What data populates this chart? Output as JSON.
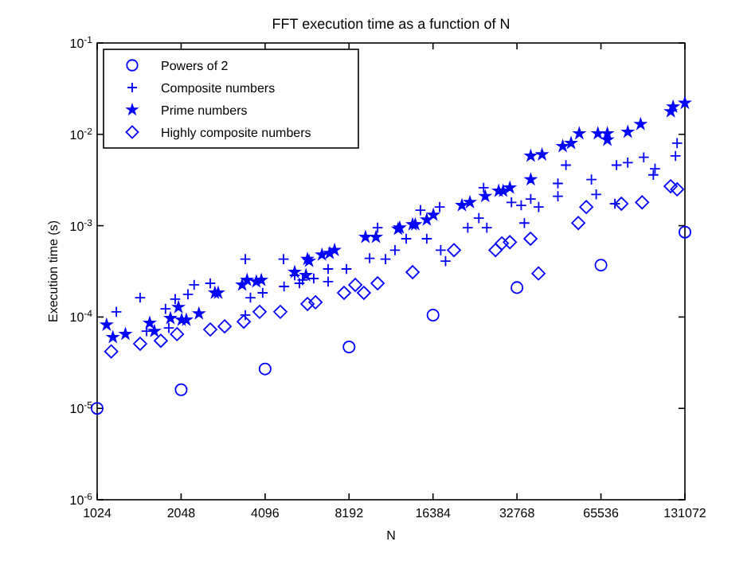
{
  "chart_data": {
    "type": "scatter",
    "title": "FFT execution time as a function of N",
    "xlabel": "N",
    "ylabel": "Execution time (s)",
    "log": "xy",
    "xlim": [
      1024,
      131072
    ],
    "ylim": [
      1e-06,
      0.1
    ],
    "xticks": [
      1024,
      2048,
      4096,
      8192,
      16384,
      32768,
      65536,
      131072
    ],
    "yticks": [
      {
        "value": 1e-06,
        "label": "10$^{-6}$"
      },
      {
        "value": 1e-05,
        "label": "10$^{-5}$"
      },
      {
        "value": 0.0001,
        "label": "10$^{-4}$"
      },
      {
        "value": 0.001,
        "label": "10$^{-3}$"
      },
      {
        "value": 0.01,
        "label": "10$^{-2}$"
      },
      {
        "value": 0.1,
        "label": "10$^{-1}$"
      }
    ],
    "grid": false,
    "legend": "top left",
    "series": [
      {
        "name": "Powers of 2",
        "color": "#0000ff",
        "marker": "circle",
        "x": [
          1024,
          2048,
          4096,
          8192,
          16384,
          32768,
          65536,
          131072
        ],
        "values": [
          1e-05,
          1.6e-05,
          2.7e-05,
          4.7e-05,
          0.000105,
          0.00021,
          0.00037,
          0.00085
        ]
      },
      {
        "name": "Composite numbers",
        "color": "#0000ff",
        "marker": "cross",
        "x": [
          1200,
          1460,
          1540,
          1800,
          1850,
          1950,
          2167,
          2280,
          2605,
          3480,
          3480,
          3630,
          4015,
          4770,
          4790,
          5440,
          5230,
          5580,
          6120,
          6890,
          6890,
          8020,
          9710,
          11070,
          10371,
          11970,
          13130,
          15560,
          14770,
          17310,
          17460,
          18170,
          21830,
          23920,
          25550,
          24880,
          31310,
          33930,
          34830,
          36710,
          39200,
          45930,
          45930,
          49080,
          60580,
          63020,
          74530,
          73540,
          81770,
          93300,
          101000,
          102400,
          121300,
          122900
        ],
        "values": [
          0.000114,
          0.000163,
          7e-05,
          0.000123,
          7.6e-05,
          0.000157,
          0.000177,
          0.000225,
          0.000234,
          0.00043,
          0.000105,
          0.000163,
          0.000184,
          0.00043,
          0.000216,
          0.000234,
          0.000286,
          0.000254,
          0.000264,
          0.000336,
          0.000244,
          0.000336,
          0.00044,
          0.00043,
          0.00095,
          0.00054,
          0.00072,
          0.00072,
          0.00148,
          0.0016,
          0.00054,
          0.00041,
          0.00095,
          0.00121,
          0.00095,
          0.0026,
          0.0018,
          0.00167,
          0.00107,
          0.00196,
          0.0016,
          0.0029,
          0.0021,
          0.0046,
          0.0032,
          0.0022,
          0.0046,
          0.00174,
          0.0049,
          0.0056,
          0.0036,
          0.0042,
          0.0058,
          0.008
        ]
      },
      {
        "name": "Prime numbers",
        "color": "#0000ff",
        "marker": "star",
        "x": [
          1107,
          1166,
          1293,
          1580,
          1642,
          1875,
          2003,
          2057,
          2138,
          2372,
          2707,
          2780,
          3390,
          3530,
          3810,
          3970,
          5230,
          5740,
          5810,
          5890,
          6550,
          6980,
          7270,
          9380,
          10230,
          12280,
          12450,
          13840,
          14150,
          15560,
          16430,
          20800,
          22220,
          25210,
          28170,
          29230,
          30900,
          36710,
          36710,
          40300,
          47800,
          51200,
          54800,
          63900,
          69100,
          69100,
          81770,
          90900,
          116600,
          118900,
          131000
        ],
        "values": [
          8.2e-05,
          6e-05,
          6.5e-05,
          8.6e-05,
          7e-05,
          9.7e-05,
          0.000128,
          9.3e-05,
          9.3e-05,
          0.000109,
          0.000184,
          0.000184,
          0.000225,
          0.000254,
          0.000244,
          0.000254,
          0.00031,
          0.000286,
          0.00043,
          0.00041,
          0.00048,
          0.0005,
          0.00054,
          0.00075,
          0.00075,
          0.00092,
          0.00095,
          0.00103,
          0.00103,
          0.00116,
          0.00131,
          0.00167,
          0.0018,
          0.0021,
          0.0024,
          0.0024,
          0.0026,
          0.0032,
          0.0058,
          0.006,
          0.0074,
          0.008,
          0.0102,
          0.0102,
          0.0087,
          0.0102,
          0.0106,
          0.0129,
          0.0178,
          0.02,
          0.022
        ]
      },
      {
        "name": "Highly composite numbers",
        "color": "#0000ff",
        "marker": "diamond",
        "x": [
          1150,
          1460,
          1732,
          1980,
          2605,
          2933,
          3435,
          3916,
          4645,
          5813,
          6210,
          7860,
          8626,
          9257,
          10371,
          13845,
          19480,
          27440,
          28920,
          30900,
          36640,
          39130,
          54360,
          58060,
          77600,
          92070,
          116500,
          122900
        ],
        "values": [
          4.2e-05,
          5.1e-05,
          5.5e-05,
          6.5e-05,
          7.3e-05,
          7.9e-05,
          8.9e-05,
          0.000114,
          0.000114,
          0.000139,
          0.000145,
          0.000184,
          0.000225,
          0.000184,
          0.000234,
          0.00031,
          0.00054,
          0.00054,
          0.00064,
          0.00066,
          0.00072,
          0.0003,
          0.00107,
          0.0016,
          0.00174,
          0.0018,
          0.0027,
          0.0025
        ]
      }
    ]
  }
}
